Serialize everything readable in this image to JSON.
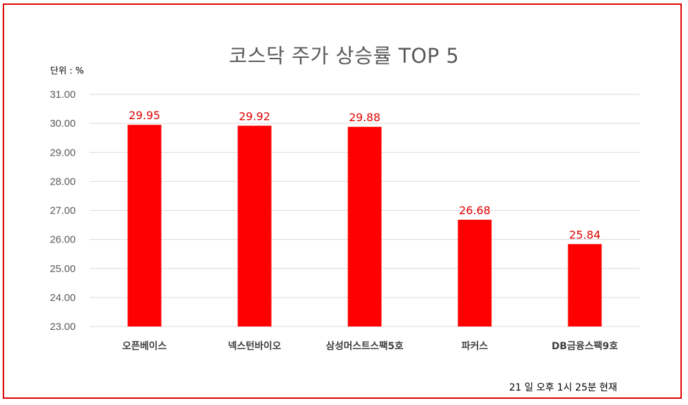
{
  "colors": {
    "frame": "#e00000",
    "bar": "#ff0000",
    "data_label": "#e00000",
    "grid": "#d9d9d9"
  },
  "unit_label": "단위 : %",
  "footnote": "21 일  오후 1시 25분 현재",
  "chart_data": {
    "type": "bar",
    "title": "코스닥 주가 상승률 TOP 5",
    "xlabel": "",
    "ylabel": "",
    "categories": [
      "오픈베이스",
      "넥스턴바이오",
      "삼성머스트스팩5호",
      "파커스",
      "DB금융스팩9호"
    ],
    "values": [
      29.95,
      29.92,
      29.88,
      26.68,
      25.84
    ],
    "data_labels": [
      "29.95",
      "29.92",
      "29.88",
      "26.68",
      "25.84"
    ],
    "ylim": [
      23,
      31
    ],
    "yticks": [
      23,
      24,
      25,
      26,
      27,
      28,
      29,
      30,
      31
    ],
    "ytick_labels": [
      "23.00",
      "24.00",
      "25.00",
      "26.00",
      "27.00",
      "28.00",
      "29.00",
      "30.00",
      "31.00"
    ],
    "grid": true,
    "legend": "none"
  }
}
